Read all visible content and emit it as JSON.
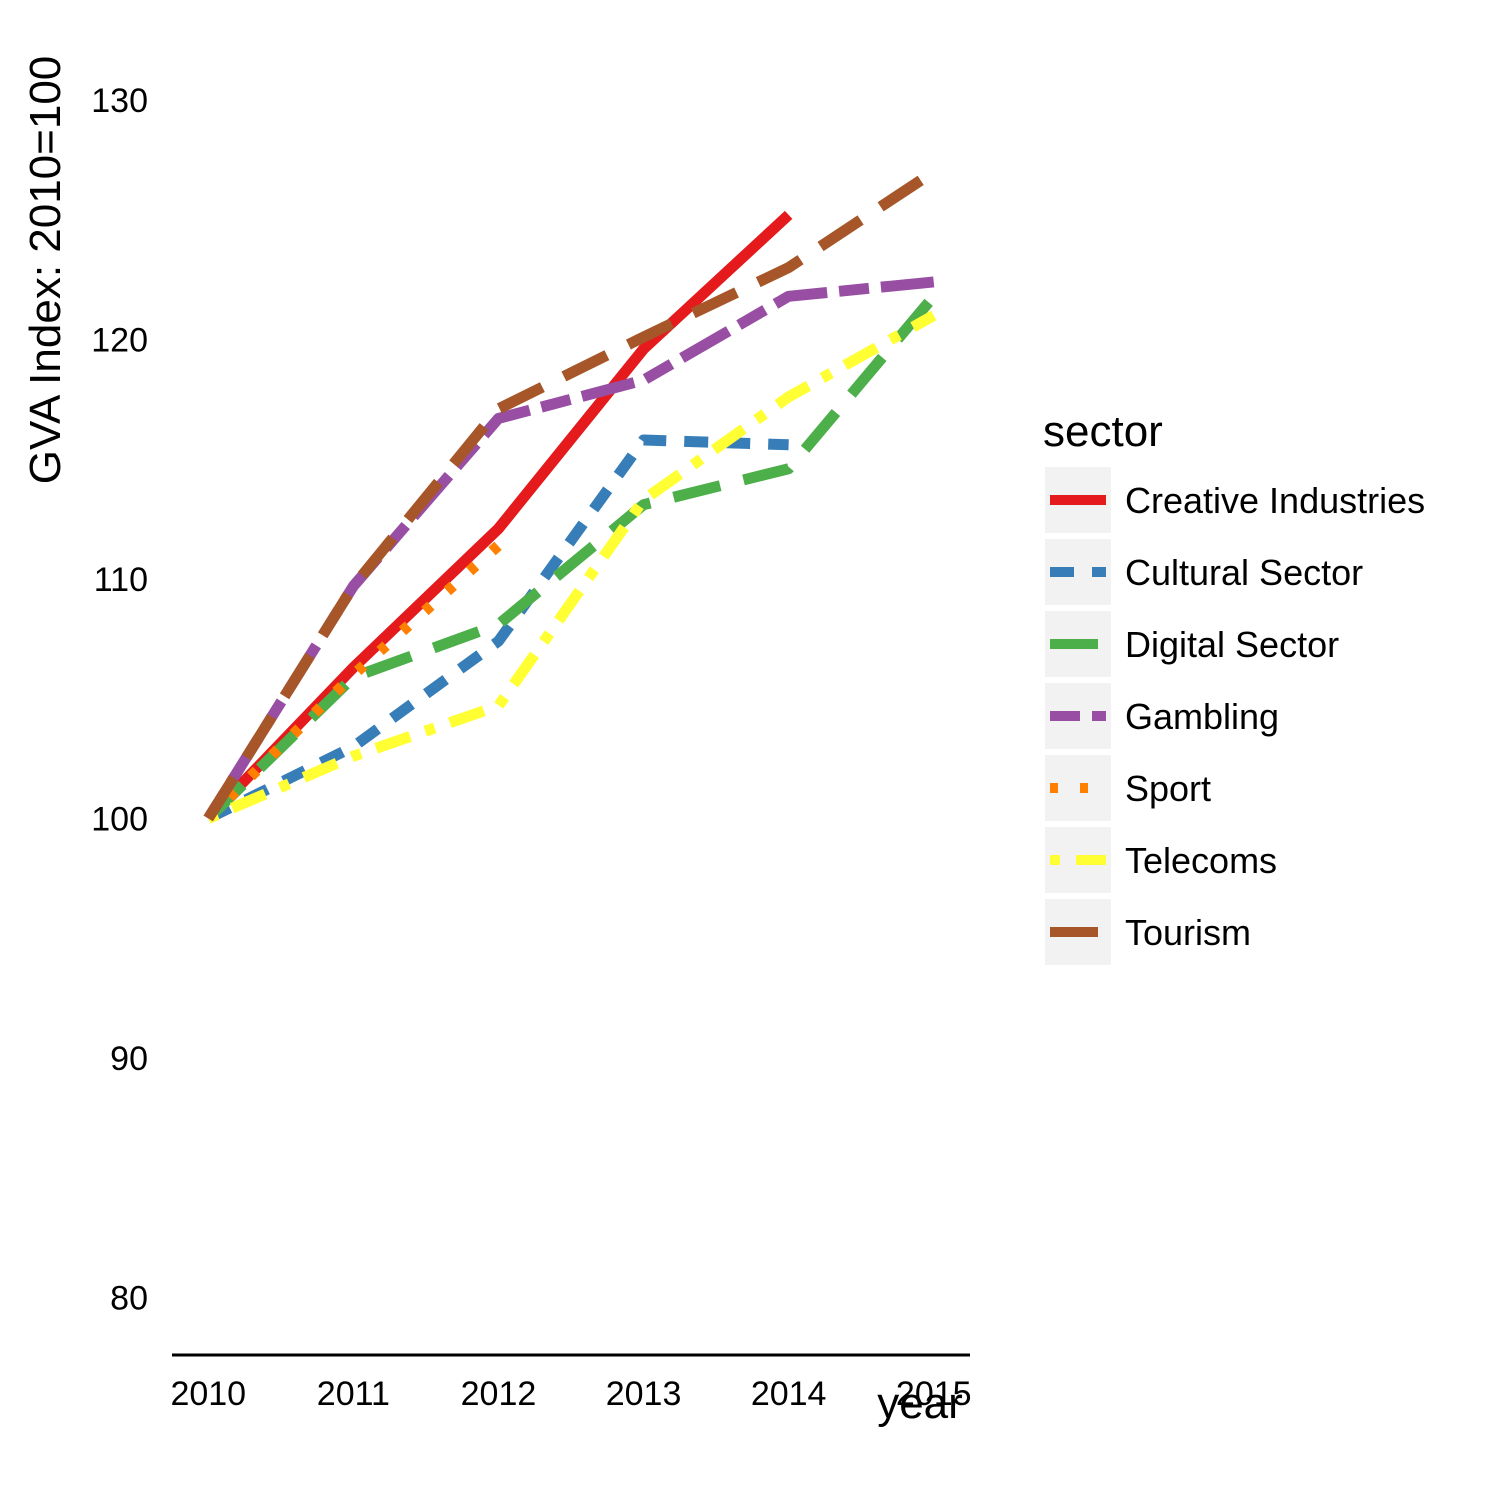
{
  "chart_data": {
    "type": "line",
    "title": "",
    "xlabel": "year",
    "ylabel": "GVA Index: 2010=100",
    "x": [
      2010,
      2011,
      2012,
      2013,
      2014,
      2015
    ],
    "x_tick_labels": [
      "2010",
      "2011",
      "2012",
      "2013",
      "2014",
      "2015"
    ],
    "y_tick_labels": [
      "80",
      "90",
      "100",
      "110",
      "120",
      "130"
    ],
    "y_ticks": [
      80,
      90,
      100,
      110,
      120,
      130
    ],
    "xlim": [
      2009.75,
      2015.25
    ],
    "ylim": [
      77.6,
      132.5
    ],
    "grid": false,
    "legend": {
      "title": "sector",
      "position": "right"
    },
    "series": [
      {
        "name": "Creative Industries",
        "color": "#e41a1c",
        "dash": "solid",
        "values": [
          100,
          106.3,
          112.1,
          119.6,
          125.2,
          null
        ]
      },
      {
        "name": "Cultural Sector",
        "color": "#377eb8",
        "dash": "dashed",
        "values": [
          100,
          103.0,
          107.4,
          115.8,
          115.6,
          null
        ]
      },
      {
        "name": "Digital Sector",
        "color": "#4daf4a",
        "dash": "longdash",
        "values": [
          100,
          105.9,
          108.1,
          113.1,
          114.6,
          121.8
        ]
      },
      {
        "name": "Gambling",
        "color": "#984ea3",
        "dash": "twodash",
        "values": [
          100,
          109.7,
          116.7,
          118.3,
          121.8,
          122.4
        ]
      },
      {
        "name": "Sport",
        "color": "#ff7f00",
        "dash": "dotted",
        "values": [
          100,
          106.0,
          111.4,
          null,
          null,
          null
        ]
      },
      {
        "name": "Telecoms",
        "color": "#ffff33",
        "dash": "dotdash",
        "values": [
          100,
          102.6,
          104.7,
          113.3,
          117.6,
          121.0
        ]
      },
      {
        "name": "Tourism",
        "color": "#a65628",
        "dash": "longdash",
        "values": [
          100,
          109.7,
          117.1,
          120.1,
          123.0,
          127.0
        ]
      }
    ]
  }
}
